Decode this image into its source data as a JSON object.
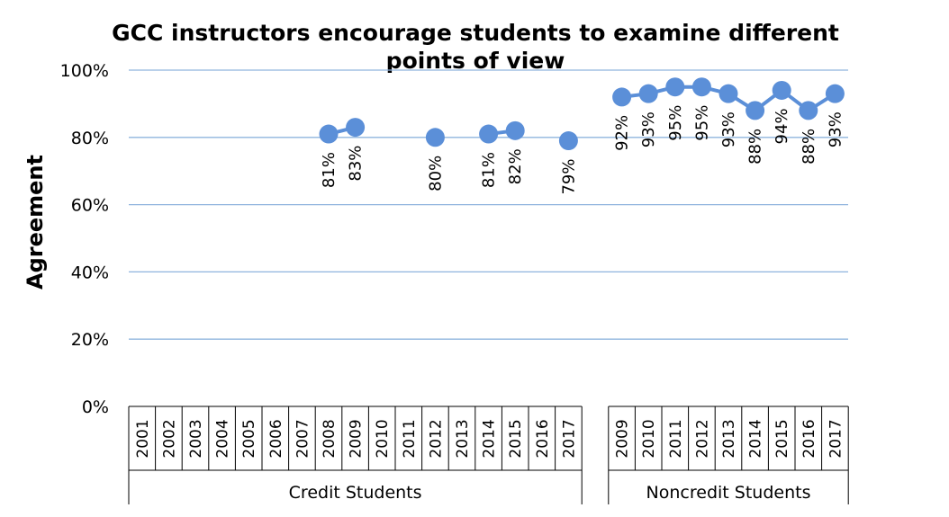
{
  "chart_data": {
    "type": "line",
    "title_lines": [
      "GCC instructors encourage students to examine different",
      "points of view"
    ],
    "xlabel": "",
    "ylabel": "Agreement",
    "ylim": [
      0,
      100
    ],
    "yticks": [
      "0%",
      "20%",
      "40%",
      "60%",
      "80%",
      "100%"
    ],
    "grid": true,
    "legend": "none",
    "color": "#5b8fd8",
    "groups": [
      {
        "name": "Credit Students",
        "categories": [
          "2001",
          "2002",
          "2003",
          "2004",
          "2005",
          "2006",
          "2007",
          "2008",
          "2009",
          "2010",
          "2011",
          "2012",
          "2013",
          "2014",
          "2015",
          "2016",
          "2017"
        ],
        "values": [
          null,
          null,
          null,
          null,
          null,
          null,
          null,
          81,
          83,
          null,
          null,
          80,
          null,
          81,
          82,
          null,
          79
        ],
        "labels": [
          null,
          null,
          null,
          null,
          null,
          null,
          null,
          "81%",
          "83%",
          null,
          null,
          "80%",
          null,
          "81%",
          "82%",
          null,
          "79%"
        ]
      },
      {
        "name": "Noncredit Students",
        "categories": [
          "2009",
          "2010",
          "2011",
          "2012",
          "2013",
          "2014",
          "2015",
          "2016",
          "2017"
        ],
        "values": [
          92,
          93,
          95,
          95,
          93,
          88,
          94,
          88,
          93
        ],
        "labels": [
          "92%",
          "93%",
          "95%",
          "95%",
          "93%",
          "88%",
          "94%",
          "88%",
          "93%"
        ]
      }
    ]
  }
}
